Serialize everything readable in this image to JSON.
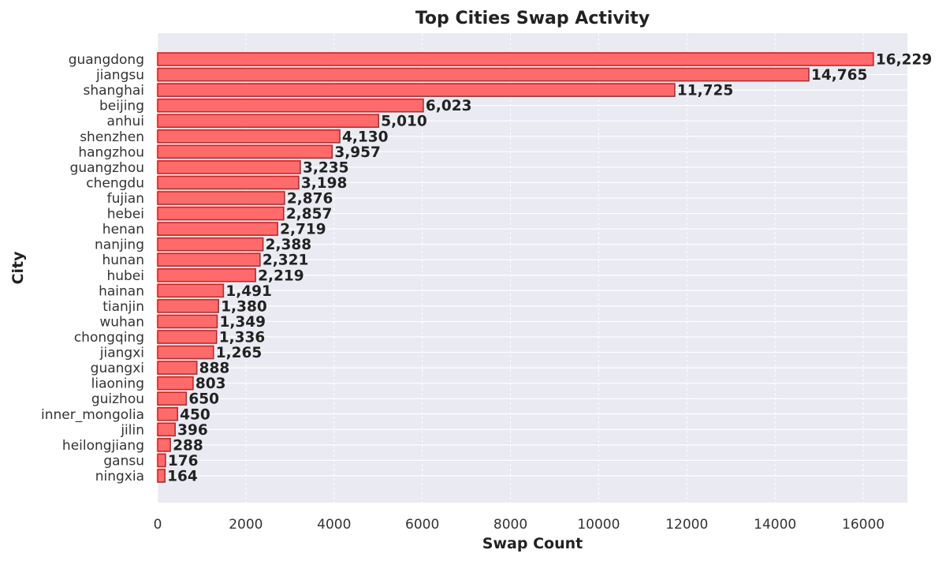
{
  "chart_data": {
    "type": "bar",
    "orientation": "horizontal",
    "title": "Top Cities Swap Activity",
    "xlabel": "Swap Count",
    "ylabel": "City",
    "xlim": [
      0,
      17000
    ],
    "xticks": [
      0,
      2000,
      4000,
      6000,
      8000,
      10000,
      12000,
      14000,
      16000
    ],
    "grid": true,
    "bar_color": "#ff6b6b",
    "bar_edge_color": "#cc2222",
    "background_color": "#eaeaf2",
    "categories": [
      "guangdong",
      "jiangsu",
      "shanghai",
      "beijing",
      "anhui",
      "shenzhen",
      "hangzhou",
      "guangzhou",
      "chengdu",
      "fujian",
      "hebei",
      "henan",
      "nanjing",
      "hunan",
      "hubei",
      "hainan",
      "tianjin",
      "wuhan",
      "chongqing",
      "jiangxi",
      "guangxi",
      "liaoning",
      "guizhou",
      "inner_mongolia",
      "jilin",
      "heilongjiang",
      "gansu",
      "ningxia"
    ],
    "values": [
      16229,
      14765,
      11725,
      6023,
      5010,
      4130,
      3957,
      3235,
      3198,
      2876,
      2857,
      2719,
      2388,
      2321,
      2219,
      1491,
      1380,
      1349,
      1336,
      1265,
      888,
      803,
      650,
      450,
      396,
      288,
      176,
      164
    ],
    "value_labels": [
      "16,229",
      "14,765",
      "11,725",
      "6,023",
      "5,010",
      "4,130",
      "3,957",
      "3,235",
      "3,198",
      "2,876",
      "2,857",
      "2,719",
      "2,388",
      "2,321",
      "2,219",
      "1,491",
      "1,380",
      "1,349",
      "1,336",
      "1,265",
      "888",
      "803",
      "650",
      "450",
      "396",
      "288",
      "176",
      "164"
    ]
  }
}
